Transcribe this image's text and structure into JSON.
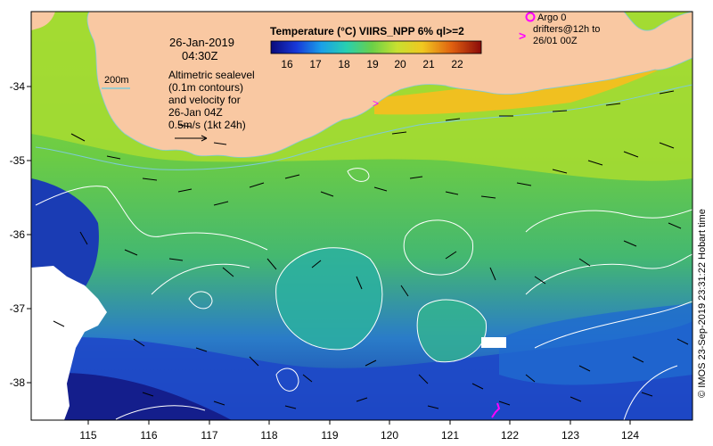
{
  "map": {
    "lon_range": [
      114.05,
      125.05
    ],
    "lat_range": [
      -38.55,
      -32.85
    ],
    "lon_ticks": [
      "115",
      "116",
      "117",
      "118",
      "119",
      "120",
      "121",
      "122",
      "123",
      "124"
    ],
    "lat_ticks": [
      "-34",
      "-35",
      "-36",
      "-37",
      "-38"
    ],
    "colors": {
      "land": "#f9c8a2",
      "contour": "#ffffff",
      "isobath": "#7ecbd7",
      "argo": "#ff00ff"
    }
  },
  "colorbar": {
    "title": "Temperature (°C) VIIRS_NPP 6% ql>=2",
    "ticks": [
      "16",
      "17",
      "18",
      "19",
      "20",
      "21",
      "22"
    ],
    "range": [
      15.5,
      22.9
    ]
  },
  "annotation": {
    "date": "26-Jan-2019",
    "time": "04:30Z",
    "isobath_label": "200m",
    "desc_line1": "Altimetric sealevel",
    "desc_line2": "(0.1m contours)",
    "desc_line3": "and velocity for",
    "desc_line4": "26-Jan 04Z",
    "scale_label": "0.5m/s (1kt 24h)"
  },
  "legend": {
    "argo_label": "Argo 0",
    "drifter_line1": "drifters@12h to",
    "drifter_line2": "26/01 00Z",
    "drifter_symbol": ">"
  },
  "credit": "© IMOS 23-Sep-2019 23:31:22 Hobart time"
}
